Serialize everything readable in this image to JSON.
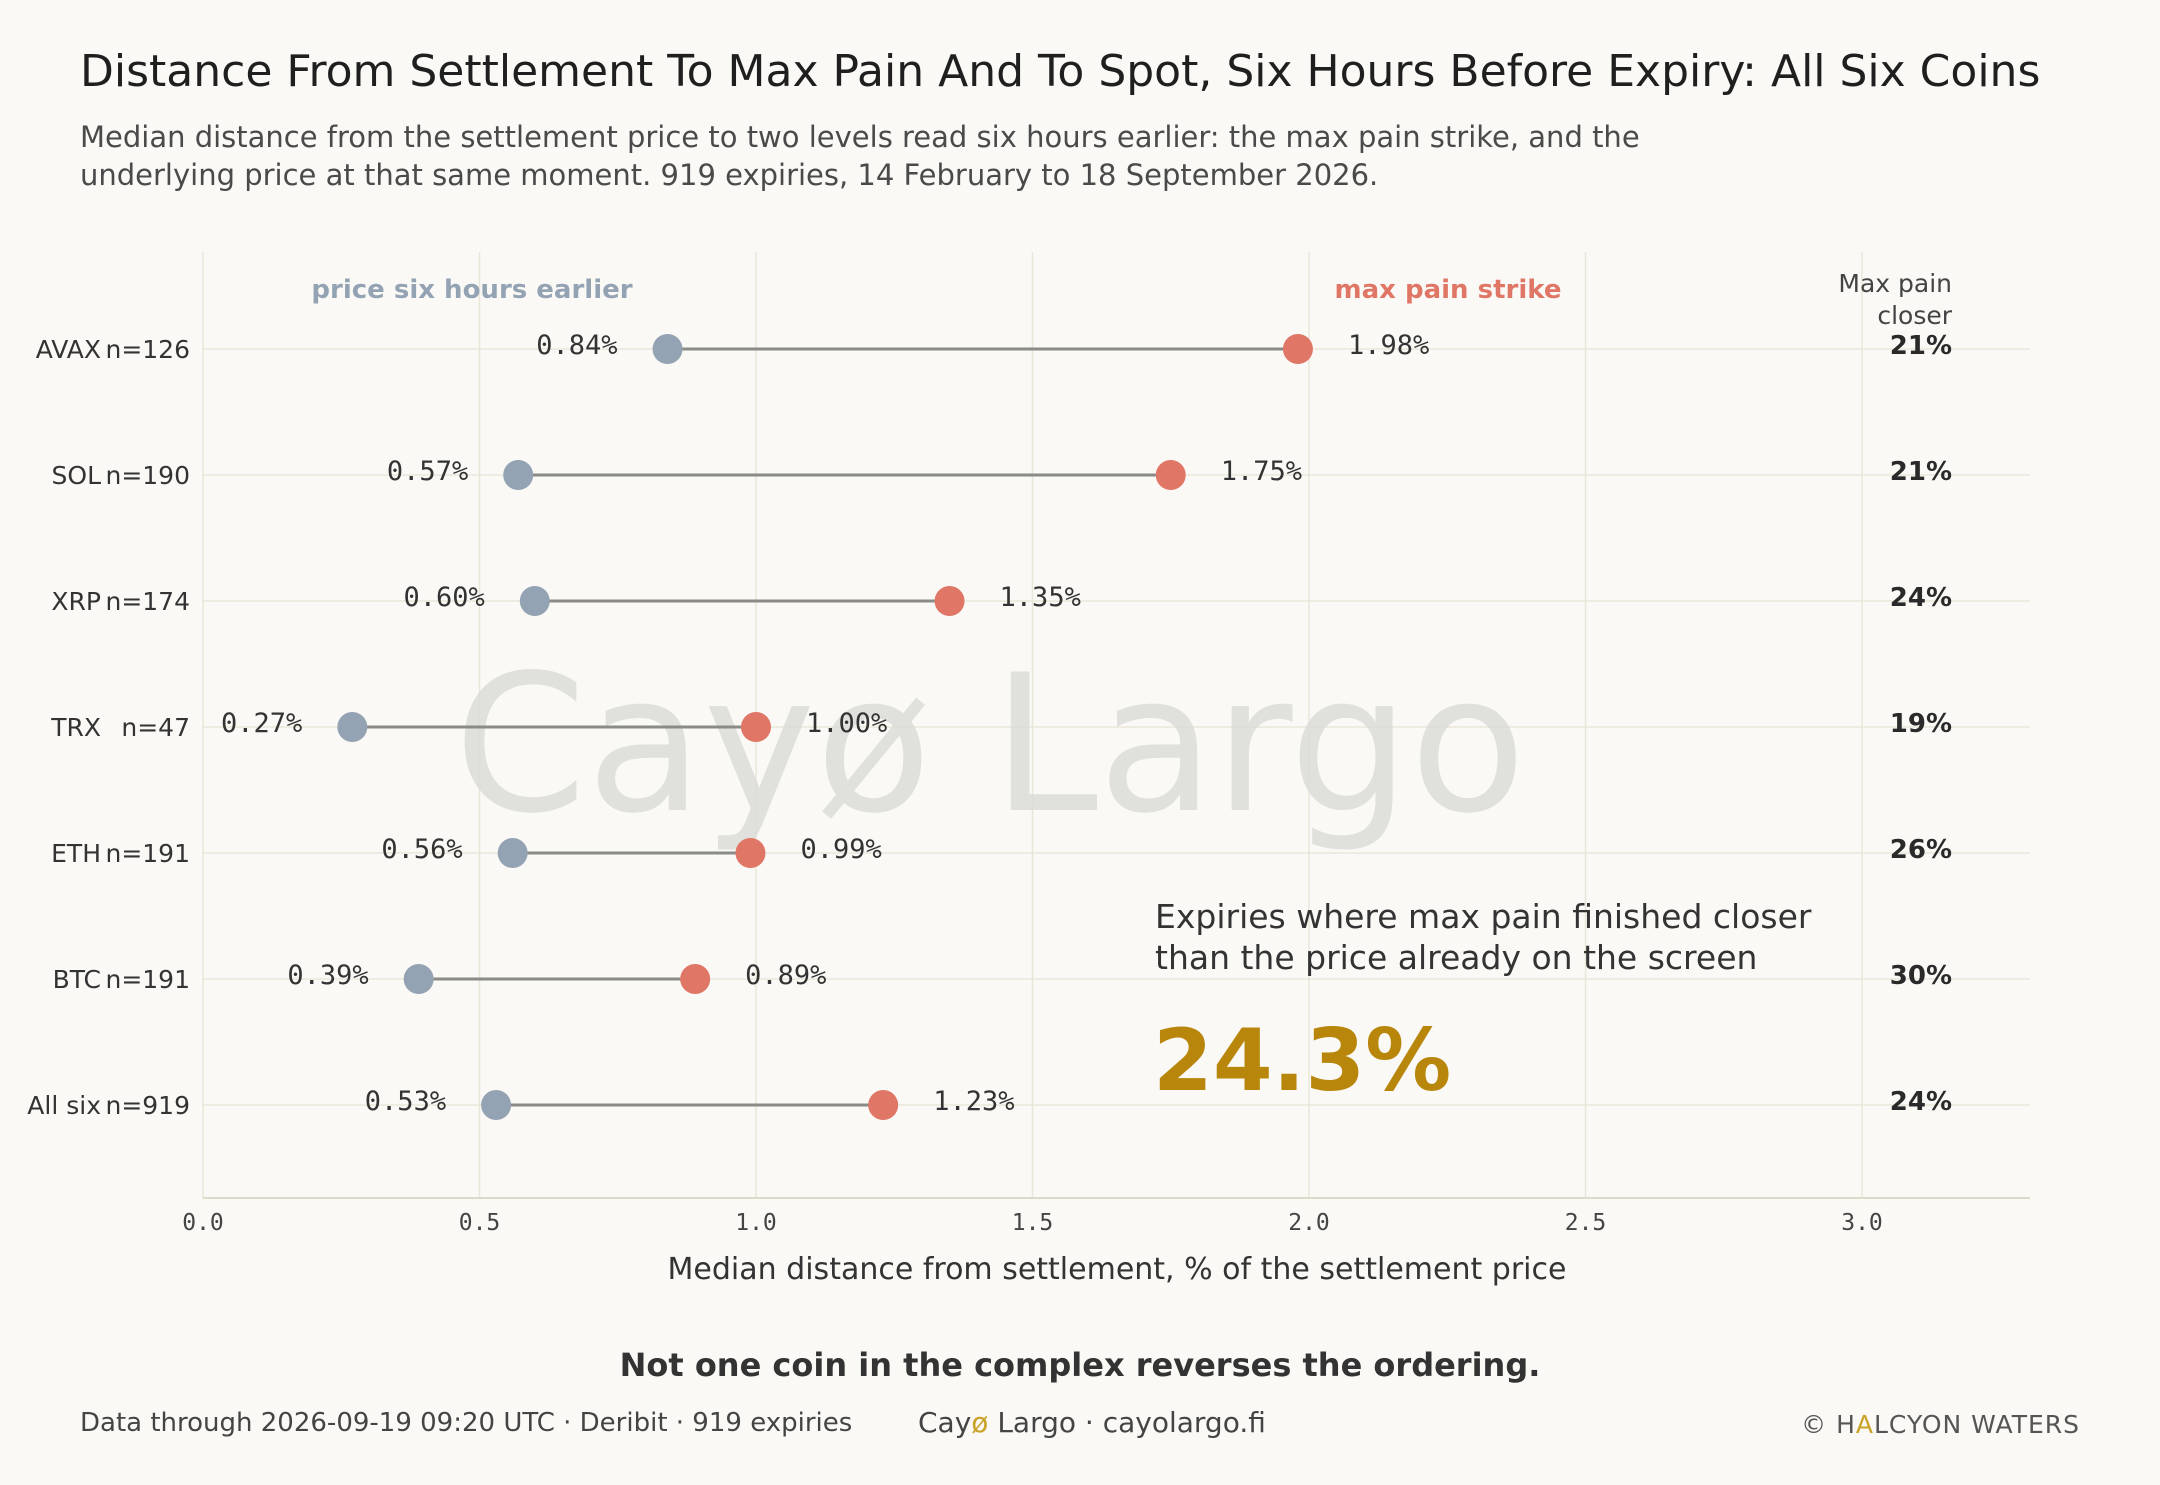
{
  "header": {
    "title": "Distance From Settlement To Max Pain And To Spot, Six Hours Before Expiry: All Six Coins",
    "subtitle": "Median distance from the settlement price to two levels read six hours earlier: the max pain strike, and the underlying price at that same moment. 919 expiries, 14 February to 18 September 2026."
  },
  "chart_data": {
    "type": "dumbbell",
    "xlabel": "Median distance from settlement, % of the settlement price",
    "xlim": [
      0,
      3.3
    ],
    "xticks": [
      0.0,
      0.5,
      1.0,
      1.5,
      2.0,
      2.5,
      3.0
    ],
    "xtick_labels": [
      "0.0",
      "0.5",
      "1.0",
      "1.5",
      "2.0",
      "2.5",
      "3.0"
    ],
    "grid": true,
    "series_labels": {
      "spot": "price six hours earlier",
      "maxpain": "max pain strike"
    },
    "right_column_header": [
      "Max pain",
      "closer"
    ],
    "rows": [
      {
        "coin": "AVAX",
        "n": "n=126",
        "spot": 0.84,
        "maxpain": 1.98,
        "spot_label": "0.84%",
        "maxpain_label": "1.98%",
        "closer": "21%"
      },
      {
        "coin": "SOL",
        "n": "n=190",
        "spot": 0.57,
        "maxpain": 1.75,
        "spot_label": "0.57%",
        "maxpain_label": "1.75%",
        "closer": "21%"
      },
      {
        "coin": "XRP",
        "n": "n=174",
        "spot": 0.6,
        "maxpain": 1.35,
        "spot_label": "0.60%",
        "maxpain_label": "1.35%",
        "closer": "24%"
      },
      {
        "coin": "TRX",
        "n": "n=47",
        "spot": 0.27,
        "maxpain": 1.0,
        "spot_label": "0.27%",
        "maxpain_label": "1.00%",
        "closer": "19%"
      },
      {
        "coin": "ETH",
        "n": "n=191",
        "spot": 0.56,
        "maxpain": 0.99,
        "spot_label": "0.56%",
        "maxpain_label": "0.99%",
        "closer": "26%"
      },
      {
        "coin": "BTC",
        "n": "n=191",
        "spot": 0.39,
        "maxpain": 0.89,
        "spot_label": "0.39%",
        "maxpain_label": "0.89%",
        "closer": "30%"
      },
      {
        "coin": "All six",
        "n": "n=919",
        "spot": 0.53,
        "maxpain": 1.23,
        "spot_label": "0.53%",
        "maxpain_label": "1.23%",
        "closer": "24%"
      }
    ],
    "callout": {
      "lines": [
        "Expiries where max pain finished closer",
        "than the price already on the screen"
      ],
      "value": "24.3%"
    },
    "watermark": "Cayø Largo",
    "colors": {
      "spot": "#94a3b3",
      "maxpain": "#e07766",
      "connector": "#8a8a86",
      "grid": "#e9e7da",
      "accent": "#b8860b"
    }
  },
  "footer": {
    "note": "Not one coin in the complex reverses the ordering.",
    "source": "Data through 2026-09-19 09:20 UTC  ·  Deribit  ·  919 expiries",
    "brand_pre": "Cay",
    "brand_o": "ø",
    "brand_post": " Largo  ·  cayolargo.fi",
    "copyright_pre": "© H",
    "copyright_a": "A",
    "copyright_post": "LCYON WATERS"
  }
}
